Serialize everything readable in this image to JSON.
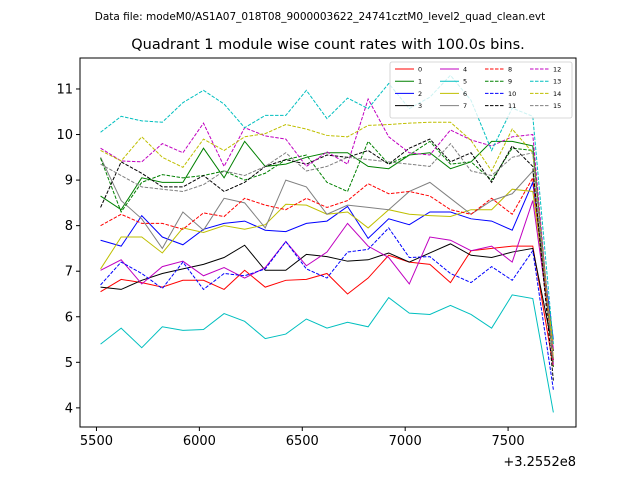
{
  "chart_data": {
    "type": "line",
    "suptitle": "Data file: modeM0/AS1A07_018T08_9000003622_24741cztM0_level2_quad_clean.evt",
    "title": "Quadrant 1 module wise count rates with 100.0s bins.",
    "xlabel": "",
    "ylabel": "",
    "x_offset_label": "+3.2552e8",
    "xlim": [
      5420,
      7830
    ],
    "ylim": [
      3.58,
      11.68
    ],
    "xticks": [
      5500,
      6000,
      6500,
      7000,
      7500
    ],
    "yticks": [
      4,
      5,
      6,
      7,
      8,
      9,
      10,
      11
    ],
    "legend_position": "top-right",
    "x": [
      5520,
      5620,
      5720,
      5820,
      5920,
      6020,
      6120,
      6220,
      6320,
      6420,
      6520,
      6620,
      6720,
      6820,
      6920,
      7020,
      7120,
      7220,
      7320,
      7420,
      7520,
      7620,
      7720
    ],
    "series": [
      {
        "name": "0",
        "color": "#ff0000",
        "dashed": false,
        "values": [
          6.55,
          6.82,
          6.75,
          6.65,
          6.8,
          6.8,
          6.6,
          7.02,
          6.65,
          6.8,
          6.82,
          6.95,
          6.5,
          6.85,
          7.35,
          7.2,
          7.15,
          6.75,
          7.45,
          7.5,
          7.55,
          7.55,
          4.9
        ]
      },
      {
        "name": "1",
        "color": "#008000",
        "dashed": false,
        "values": [
          8.65,
          8.35,
          9.05,
          8.95,
          8.95,
          9.7,
          9.05,
          9.85,
          9.3,
          9.35,
          9.5,
          9.6,
          9.6,
          9.3,
          9.25,
          9.55,
          9.6,
          9.25,
          9.4,
          9.85,
          9.85,
          9.75,
          5.05
        ]
      },
      {
        "name": "2",
        "color": "#0000ff",
        "dashed": false,
        "values": [
          7.68,
          7.55,
          8.22,
          7.75,
          7.58,
          7.92,
          8.05,
          8.1,
          7.9,
          7.87,
          8.05,
          8.1,
          8.42,
          7.72,
          8.15,
          8.02,
          8.3,
          8.3,
          8.15,
          8.1,
          7.9,
          8.95,
          5.5
        ]
      },
      {
        "name": "3",
        "color": "#000000",
        "dashed": false,
        "values": [
          6.65,
          6.6,
          6.8,
          6.95,
          7.05,
          7.15,
          7.3,
          7.57,
          7.02,
          7.02,
          7.37,
          7.32,
          7.22,
          7.25,
          7.4,
          7.2,
          7.4,
          7.6,
          7.35,
          7.3,
          7.42,
          7.5,
          5.25
        ]
      },
      {
        "name": "4",
        "color": "#c000c0",
        "dashed": false,
        "values": [
          7.02,
          7.25,
          6.72,
          7.1,
          7.22,
          6.9,
          7.08,
          6.85,
          7.08,
          7.65,
          7.12,
          7.42,
          8.05,
          7.55,
          7.3,
          6.72,
          7.75,
          7.68,
          7.45,
          7.55,
          7.2,
          8.55,
          5.3
        ]
      },
      {
        "name": "5",
        "color": "#00bfbf",
        "dashed": false,
        "values": [
          5.4,
          5.75,
          5.32,
          5.78,
          5.7,
          5.72,
          6.07,
          5.9,
          5.52,
          5.62,
          5.95,
          5.75,
          5.88,
          5.78,
          6.42,
          6.08,
          6.05,
          6.25,
          6.05,
          5.75,
          6.48,
          6.4,
          3.9
        ]
      },
      {
        "name": "6",
        "color": "#bfbf00",
        "dashed": false,
        "values": [
          7.05,
          7.75,
          7.75,
          7.4,
          7.95,
          7.85,
          8.0,
          7.92,
          8.02,
          8.47,
          8.45,
          8.25,
          8.3,
          7.95,
          8.35,
          8.25,
          8.22,
          8.2,
          8.35,
          8.35,
          8.8,
          8.75,
          5.4
        ]
      },
      {
        "name": "7",
        "color": "#808080",
        "dashed": false,
        "values": [
          9.5,
          8.55,
          8.15,
          7.5,
          8.3,
          7.9,
          8.6,
          8.5,
          7.95,
          9.0,
          8.85,
          8.25,
          8.45,
          8.4,
          8.35,
          8.75,
          8.95,
          8.6,
          8.25,
          8.55,
          8.7,
          9.2,
          5.0
        ]
      },
      {
        "name": "8",
        "color": "#ff0000",
        "dashed": true,
        "values": [
          8.0,
          8.25,
          8.05,
          8.05,
          7.92,
          8.28,
          8.2,
          8.6,
          8.45,
          8.35,
          8.6,
          8.4,
          8.55,
          8.92,
          8.7,
          8.75,
          8.65,
          8.35,
          8.25,
          8.6,
          8.25,
          9.05,
          5.05
        ]
      },
      {
        "name": "9",
        "color": "#008000",
        "dashed": true,
        "values": [
          9.48,
          8.3,
          8.95,
          9.12,
          9.05,
          9.1,
          9.2,
          9.0,
          9.15,
          9.45,
          9.55,
          8.95,
          8.75,
          9.85,
          9.35,
          9.55,
          9.85,
          9.35,
          9.4,
          9.0,
          9.7,
          9.65,
          4.9
        ]
      },
      {
        "name": "10",
        "color": "#0000ff",
        "dashed": true,
        "values": [
          6.7,
          7.2,
          6.95,
          6.62,
          7.2,
          6.6,
          6.95,
          6.9,
          7.05,
          7.65,
          7.05,
          6.85,
          7.42,
          7.48,
          7.95,
          7.3,
          7.32,
          6.95,
          6.75,
          7.1,
          6.8,
          7.45,
          4.4
        ]
      },
      {
        "name": "11",
        "color": "#000000",
        "dashed": true,
        "values": [
          8.4,
          9.4,
          9.15,
          8.85,
          8.85,
          9.1,
          8.75,
          8.95,
          9.3,
          9.45,
          9.35,
          9.55,
          9.5,
          9.65,
          9.35,
          9.7,
          9.9,
          9.4,
          9.6,
          8.95,
          9.75,
          9.3,
          4.6
        ]
      },
      {
        "name": "12",
        "color": "#c000c0",
        "dashed": true,
        "values": [
          9.7,
          9.42,
          9.4,
          9.8,
          9.6,
          10.25,
          9.3,
          10.15,
          9.97,
          9.9,
          9.3,
          9.62,
          9.35,
          10.78,
          9.95,
          9.6,
          9.55,
          10.1,
          9.88,
          9.75,
          9.95,
          10.0,
          4.95
        ]
      },
      {
        "name": "13",
        "color": "#00bfbf",
        "dashed": true,
        "values": [
          10.05,
          10.4,
          10.3,
          10.27,
          10.7,
          10.97,
          10.67,
          10.15,
          10.42,
          10.42,
          10.97,
          10.35,
          10.8,
          10.57,
          11.12,
          10.57,
          10.82,
          11.3,
          10.75,
          9.65,
          10.58,
          10.4,
          5.4
        ]
      },
      {
        "name": "14",
        "color": "#bfbf00",
        "dashed": true,
        "values": [
          9.65,
          9.42,
          9.95,
          9.5,
          9.28,
          9.9,
          9.65,
          9.95,
          10.02,
          10.22,
          10.12,
          9.98,
          9.95,
          10.2,
          10.22,
          10.25,
          10.27,
          10.27,
          9.87,
          9.2,
          10.12,
          9.6,
          5.1
        ]
      },
      {
        "name": "15",
        "color": "#808080",
        "dashed": true,
        "values": [
          9.35,
          9.1,
          8.85,
          8.8,
          8.75,
          8.9,
          9.2,
          9.1,
          9.3,
          9.6,
          9.2,
          9.3,
          9.5,
          9.45,
          9.4,
          9.35,
          9.3,
          9.8,
          9.2,
          9.1,
          9.5,
          9.6,
          5.0
        ]
      }
    ]
  }
}
